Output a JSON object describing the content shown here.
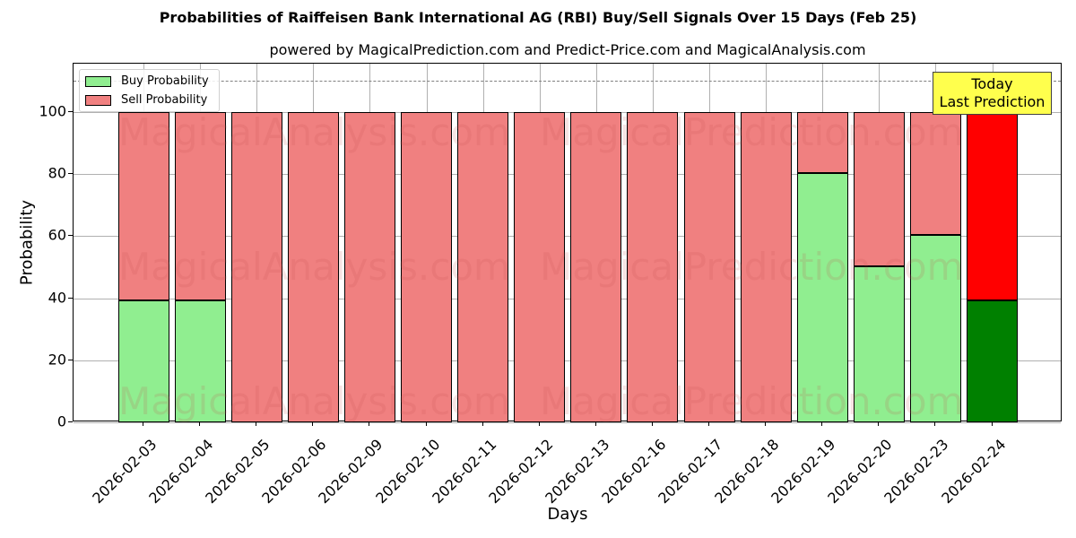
{
  "chart_data": {
    "type": "bar",
    "stacked": true,
    "title": "Probabilities of Raiffeisen Bank International AG (RBI) Buy/Sell Signals Over 15 Days (Feb 25)",
    "subtitle": "powered by MagicalPrediction.com and Predict-Price.com and MagicalAnalysis.com",
    "xlabel": "Days",
    "ylabel": "Probability",
    "ylim": [
      0,
      115
    ],
    "yticks": [
      0,
      20,
      40,
      60,
      80,
      100
    ],
    "grid": true,
    "reference_line": 110,
    "legend_position": "upper left",
    "categories": [
      "2026-02-03",
      "2026-02-04",
      "2026-02-05",
      "2026-02-06",
      "2026-02-09",
      "2026-02-10",
      "2026-02-11",
      "2026-02-12",
      "2026-02-13",
      "2026-02-16",
      "2026-02-17",
      "2026-02-18",
      "2026-02-19",
      "2026-02-20",
      "2026-02-23",
      "2026-02-24"
    ],
    "series": [
      {
        "name": "Buy Probability",
        "color": "#90ee90",
        "values": [
          39.3,
          39.3,
          0,
          0,
          0,
          0,
          0,
          0,
          0,
          0,
          0,
          0,
          80.3,
          50.3,
          60.4,
          39.3
        ]
      },
      {
        "name": "Sell Probability",
        "color": "#f08080",
        "values": [
          60.7,
          60.7,
          100,
          100,
          100,
          100,
          100,
          100,
          100,
          100,
          100,
          100,
          19.7,
          49.7,
          39.6,
          60.7
        ]
      }
    ],
    "highlight": {
      "index": 15,
      "buy_color": "#008000",
      "sell_color": "#ff0000"
    },
    "annotation": {
      "text": "Today\nLast Prediction",
      "line1": "Today",
      "line2": "Last Prediction",
      "background": "#ffff4d"
    },
    "watermarks": [
      "MagicalAnalysis.com",
      "MagicalPrediction.com"
    ]
  }
}
